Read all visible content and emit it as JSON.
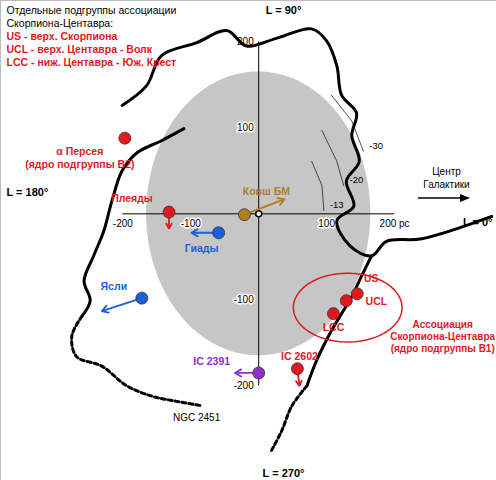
{
  "chart_data": {
    "type": "scatter",
    "title": "Отдельные подгруппы ассоциации\nСкорпиона-Центавра:",
    "subgroup_notes": "US - верх. Скорпиона\nUCL - верх. Центавра - Волк\nLCC - ниж. Центавра - Юж. Крест",
    "subgroup_notes_color": "#e0191f",
    "direction_labels": {
      "top": "L = 90°",
      "bottom": "L = 270°",
      "left": "L = 180°",
      "right": "L = 0°"
    },
    "galactic_center_label": "Центр\nГалактики",
    "xlim": [
      -380,
      350
    ],
    "ylim": [
      -310,
      248
    ],
    "xticks": [
      -200,
      -100,
      100,
      {
        "value": 200,
        "label": "200 pc"
      }
    ],
    "yticks": [
      -200,
      -100,
      100,
      200
    ],
    "region": {
      "center": [
        0,
        0
      ],
      "radius": 165,
      "color": "#c6c6c6"
    },
    "points": [
      {
        "label": "α Персея\n(ядро подгруппы B2)",
        "x": -197,
        "y": 88,
        "color": "#e0191f"
      },
      {
        "label": "Плеяды",
        "x": -132,
        "y": 2,
        "color": "#e0191f",
        "to": [
          -132,
          -17
        ]
      },
      {
        "label": "Гиады",
        "x": -59,
        "y": -22,
        "color": "#1d5fd8",
        "to": [
          -99,
          -22
        ]
      },
      {
        "label": "Ясли",
        "x": -172,
        "y": -98,
        "color": "#1d5fd8",
        "to": [
          -231,
          -113
        ]
      },
      {
        "label": "Ковш БМ",
        "x": -21,
        "y": -1,
        "color": "#b08020",
        "to": [
          38,
          17
        ]
      },
      {
        "label": "IC 2391",
        "x": 0,
        "y": -185,
        "color": "#8b32c8",
        "to": [
          -35,
          -185
        ]
      },
      {
        "label": "IC 2602",
        "x": 57,
        "y": -180,
        "color": "#e0191f",
        "to": [
          60,
          -200
        ]
      },
      {
        "label": "US",
        "x": 145,
        "y": -93,
        "color": "#e0191f"
      },
      {
        "label": "UCL",
        "x": 129,
        "y": -101,
        "color": "#e0191f"
      },
      {
        "label": "LCC",
        "x": 110,
        "y": -116,
        "color": "#e0191f"
      }
    ],
    "association": {
      "label": "Ассоциация\nСкорпиона-Центавра\n(ядро подгруппы B1)",
      "center": [
        131,
        -109
      ],
      "rx": 80,
      "ry": 40,
      "color": "#e0191f"
    },
    "boundaries": [
      {
        "line_style": "solid",
        "points": [
          [
            -201,
            126
          ],
          [
            -165,
            149
          ],
          [
            -143,
            184
          ],
          [
            -91,
            199
          ],
          [
            -47,
            213
          ],
          [
            -18,
            195
          ],
          [
            26,
            204
          ],
          [
            78,
            215
          ],
          [
            100,
            201
          ],
          [
            115,
            172
          ],
          [
            122,
            138
          ],
          [
            144,
            117
          ],
          [
            137,
            91
          ],
          [
            148,
            61
          ],
          [
            129,
            38
          ],
          [
            140,
            9
          ],
          [
            115,
            -8
          ],
          [
            134,
            -37
          ],
          [
            166,
            -49
          ],
          [
            188,
            -32
          ],
          [
            240,
            -29
          ],
          [
            343,
            -3
          ]
        ]
      },
      {
        "line_style": "solid",
        "points": [
          [
            -110,
            99
          ],
          [
            -143,
            85
          ],
          [
            -179,
            71
          ],
          [
            -201,
            50
          ],
          [
            -216,
            15
          ],
          [
            -228,
            -20
          ],
          [
            -243,
            -49
          ],
          [
            -257,
            -78
          ],
          [
            -248,
            -101
          ],
          [
            -260,
            -119
          ]
        ]
      },
      {
        "line_style": "dashed",
        "points": [
          [
            -260,
            -119
          ],
          [
            -275,
            -142
          ],
          [
            -268,
            -166
          ],
          [
            -231,
            -177
          ],
          [
            -194,
            -200
          ],
          [
            -157,
            -212
          ],
          [
            -121,
            -218
          ],
          [
            -84,
            -223
          ]
        ]
      },
      {
        "line_style": "solid",
        "points": [
          [
            166,
            -49
          ],
          [
            151,
            -73
          ],
          [
            137,
            -96
          ],
          [
            107,
            -136
          ],
          [
            85,
            -171
          ],
          [
            71,
            -200
          ]
        ]
      },
      {
        "line_style": "dashed",
        "points": [
          [
            71,
            -200
          ],
          [
            49,
            -223
          ],
          [
            34,
            -252
          ],
          [
            19,
            -275
          ]
        ]
      }
    ],
    "contours": [
      {
        "label": "-30",
        "points": [
          [
            107,
            138
          ],
          [
            137,
            108
          ],
          [
            154,
            73
          ]
        ]
      },
      {
        "label": "-20",
        "points": [
          [
            93,
            97
          ],
          [
            115,
            61
          ],
          [
            125,
            33
          ]
        ]
      },
      {
        "label": "-13",
        "points": [
          [
            78,
            61
          ],
          [
            93,
            33
          ],
          [
            96,
            4
          ]
        ]
      }
    ],
    "annotations": [
      {
        "text": "NGC 2451",
        "x": -84,
        "y": -223
      }
    ]
  }
}
